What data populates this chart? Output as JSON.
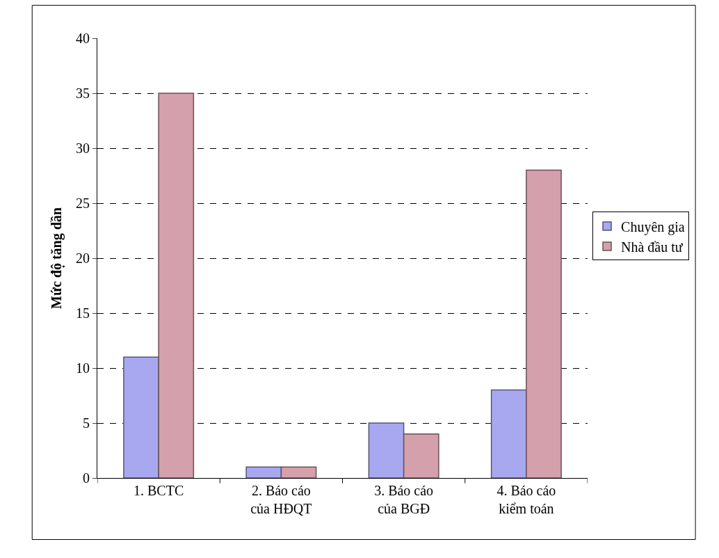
{
  "chart_data": {
    "type": "bar",
    "ylabel": "Mức độ tăng dần",
    "categories": [
      "1. BCTC",
      "2. Báo cáo\ncủa HĐQT",
      "3. Báo cáo\ncủa BGĐ",
      "4. Báo cáo\nkiểm toán"
    ],
    "series": [
      {
        "name": "Chuyên gia",
        "color": "#a8a8f0",
        "values": [
          11,
          1,
          5,
          8
        ]
      },
      {
        "name": "Nhà đầu tư",
        "color": "#d4a0ac",
        "values": [
          35,
          1,
          4,
          28
        ]
      }
    ],
    "ylim": [
      0,
      40
    ],
    "yticks": [
      0,
      5,
      10,
      15,
      20,
      25,
      30,
      35,
      40
    ],
    "grid": "y",
    "legend": "right"
  }
}
